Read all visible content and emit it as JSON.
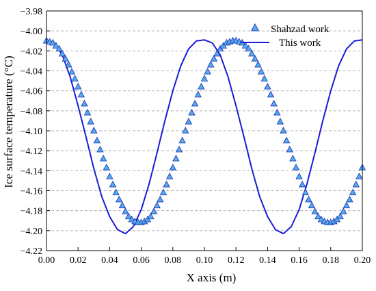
{
  "chart_data": {
    "type": "line",
    "title": "",
    "xlabel": "X axis (m)",
    "ylabel": "Ice surface temperature (°C)",
    "xlim": [
      0.0,
      0.2
    ],
    "ylim": [
      -4.22,
      -3.98
    ],
    "xticks": [
      0.0,
      0.02,
      0.04,
      0.06,
      0.08,
      0.1,
      0.12,
      0.14,
      0.16,
      0.18,
      0.2
    ],
    "xtick_labels": [
      "0.00",
      "0.02",
      "0.04",
      "0.06",
      "0.08",
      "0.10",
      "0.12",
      "0.14",
      "0.16",
      "0.18",
      "0.20"
    ],
    "yticks": [
      -3.98,
      -4.0,
      -4.02,
      -4.04,
      -4.06,
      -4.08,
      -4.1,
      -4.12,
      -4.14,
      -4.16,
      -4.18,
      -4.2,
      -4.22
    ],
    "ytick_labels": [
      "−3.98",
      "−4.00",
      "−4.02",
      "−4.04",
      "−4.06",
      "−4.08",
      "−4.10",
      "−4.12",
      "−4.14",
      "−4.16",
      "−4.18",
      "−4.20",
      "−4.22"
    ],
    "grid": "horizontal dashed",
    "legend_position": "top-right",
    "series": [
      {
        "name": "Shahzad work",
        "style": "triangle-markers",
        "color": "#5aaae6",
        "edge_color": "#1f3fbf",
        "x": [
          0.0,
          0.002,
          0.004,
          0.006,
          0.008,
          0.01,
          0.012,
          0.014,
          0.016,
          0.018,
          0.02,
          0.022,
          0.024,
          0.026,
          0.028,
          0.03,
          0.032,
          0.034,
          0.036,
          0.038,
          0.04,
          0.042,
          0.044,
          0.046,
          0.048,
          0.05,
          0.052,
          0.054,
          0.056,
          0.058,
          0.06,
          0.062,
          0.064,
          0.066,
          0.068,
          0.07,
          0.072,
          0.074,
          0.076,
          0.078,
          0.08,
          0.082,
          0.084,
          0.086,
          0.088,
          0.09,
          0.092,
          0.094,
          0.096,
          0.098,
          0.1,
          0.102,
          0.104,
          0.106,
          0.108,
          0.11,
          0.112,
          0.114,
          0.116,
          0.118,
          0.12,
          0.122,
          0.124,
          0.126,
          0.128,
          0.13,
          0.132,
          0.134,
          0.136,
          0.138,
          0.14,
          0.142,
          0.144,
          0.146,
          0.148,
          0.15,
          0.152,
          0.154,
          0.156,
          0.158,
          0.16,
          0.162,
          0.164,
          0.166,
          0.168,
          0.17,
          0.172,
          0.174,
          0.176,
          0.178,
          0.18,
          0.182,
          0.184,
          0.186,
          0.188,
          0.19,
          0.192,
          0.194,
          0.196,
          0.198,
          0.2
        ],
        "y": [
          -4.01,
          -4.011,
          -4.012,
          -4.015,
          -4.018,
          -4.023,
          -4.028,
          -4.034,
          -4.041,
          -4.048,
          -4.056,
          -4.064,
          -4.073,
          -4.082,
          -4.091,
          -4.1,
          -4.11,
          -4.119,
          -4.128,
          -4.137,
          -4.146,
          -4.154,
          -4.162,
          -4.169,
          -4.175,
          -4.181,
          -4.186,
          -4.189,
          -4.191,
          -4.192,
          -4.192,
          -4.191,
          -4.189,
          -4.186,
          -4.181,
          -4.175,
          -4.169,
          -4.162,
          -4.154,
          -4.146,
          -4.137,
          -4.128,
          -4.119,
          -4.11,
          -4.1,
          -4.091,
          -4.082,
          -4.073,
          -4.064,
          -4.056,
          -4.048,
          -4.041,
          -4.034,
          -4.028,
          -4.023,
          -4.018,
          -4.015,
          -4.012,
          -4.011,
          -4.01,
          -4.01,
          -4.011,
          -4.012,
          -4.015,
          -4.018,
          -4.023,
          -4.028,
          -4.034,
          -4.041,
          -4.048,
          -4.056,
          -4.064,
          -4.073,
          -4.082,
          -4.091,
          -4.1,
          -4.11,
          -4.119,
          -4.128,
          -4.137,
          -4.146,
          -4.154,
          -4.162,
          -4.169,
          -4.175,
          -4.181,
          -4.186,
          -4.189,
          -4.191,
          -4.192,
          -4.192,
          -4.191,
          -4.189,
          -4.186,
          -4.181,
          -4.175,
          -4.169,
          -4.162,
          -4.154,
          -4.146,
          -4.137
        ]
      },
      {
        "name": "This work",
        "style": "solid-line",
        "color": "#1a1ad6",
        "x": [
          0.0,
          0.005,
          0.01,
          0.015,
          0.02,
          0.025,
          0.03,
          0.035,
          0.04,
          0.045,
          0.05,
          0.055,
          0.06,
          0.065,
          0.07,
          0.075,
          0.08,
          0.085,
          0.09,
          0.095,
          0.1,
          0.105,
          0.11,
          0.115,
          0.12,
          0.125,
          0.13,
          0.135,
          0.14,
          0.145,
          0.15,
          0.155,
          0.16,
          0.165,
          0.17,
          0.175,
          0.18,
          0.185,
          0.19,
          0.195,
          0.2
        ],
        "y": [
          -4.009,
          -4.012,
          -4.024,
          -4.046,
          -4.075,
          -4.106,
          -4.138,
          -4.166,
          -4.186,
          -4.199,
          -4.203,
          -4.196,
          -4.179,
          -4.153,
          -4.122,
          -4.09,
          -4.06,
          -4.035,
          -4.018,
          -4.01,
          -4.009,
          -4.012,
          -4.024,
          -4.046,
          -4.075,
          -4.106,
          -4.138,
          -4.166,
          -4.186,
          -4.199,
          -4.203,
          -4.196,
          -4.179,
          -4.153,
          -4.122,
          -4.09,
          -4.06,
          -4.035,
          -4.018,
          -4.01,
          -4.009
        ]
      }
    ]
  }
}
